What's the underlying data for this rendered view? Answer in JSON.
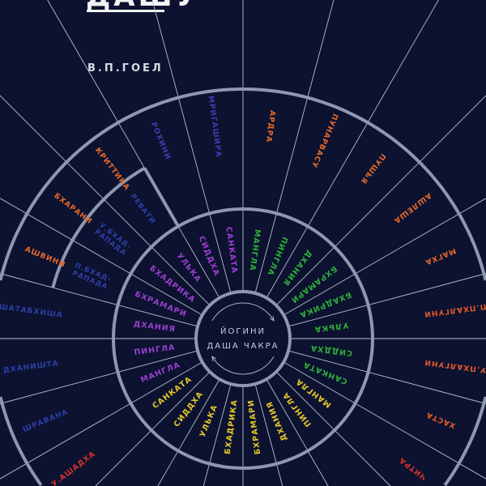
{
  "cover": {
    "title": "ДАШУ",
    "author": "В.П.ГОЕЛ",
    "center_line1": "ЙОГИНИ",
    "center_line2": "ДАША ЧАКРА",
    "background_color": "#0c1230",
    "ring_color": "#8e98ae"
  },
  "nakshatras": [
    {
      "label": "АШВИНИ",
      "color": "#e8692a"
    },
    {
      "label": "БХАРАНИ",
      "color": "#e8692a"
    },
    {
      "label": "КРИТТИКА",
      "color": "#e8692a"
    },
    {
      "label": "РОХИНИ",
      "color": "#3c3fb0"
    },
    {
      "label": "МРИГАШИРА",
      "color": "#3c3fb0"
    },
    {
      "label": "АРДРА",
      "color": "#e8692a"
    },
    {
      "label": "ПУНАРВАСУ",
      "color": "#e8692a"
    },
    {
      "label": "ПУШЬЯ",
      "color": "#e8692a"
    },
    {
      "label": "АШЛЕША",
      "color": "#e8692a"
    },
    {
      "label": "МАГХА",
      "color": "#e8692a"
    },
    {
      "label": "П.ПХАЛГУНИ",
      "color": "#e8592a"
    },
    {
      "label": "У.ПХАЛГУНИ",
      "color": "#e8592a"
    },
    {
      "label": "ХАСТА",
      "color": "#e8592a"
    },
    {
      "label": "ЧИТРА",
      "color": "#d8322a"
    },
    {
      "label": "",
      "color": "#d8322a"
    },
    {
      "label": "",
      "color": "#d8322a"
    },
    {
      "label": "",
      "color": "#d8322a"
    },
    {
      "label": "",
      "color": "#d8322a"
    },
    {
      "label": "",
      "color": "#d8322a"
    },
    {
      "label": "",
      "color": "#d8322a"
    },
    {
      "label": "У.АШАДХА",
      "color": "#d8322a"
    },
    {
      "label": "ШРАВАНА",
      "color": "#2e3fa8"
    },
    {
      "label": "ДХАНИШТА",
      "color": "#2e3fa8"
    },
    {
      "label": "ШАТАБХИША",
      "color": "#2e3fa8"
    },
    {
      "label": "П.БХАД-РАПАДА",
      "color": "#2e3fa8"
    },
    {
      "label": "У.БХАД-РАПАДА",
      "color": "#2e3fa8"
    },
    {
      "label": "РЕВАТИ",
      "color": "#2e3fa8"
    }
  ],
  "yoginis": [
    "МАНГЛА",
    "ПИНГЛА",
    "ДХАНИЯ",
    "БХРАМАРИ",
    "БХАДРИКА",
    "УЛЬКА",
    "СИДДХА",
    "САНКАТА"
  ],
  "yogini_group_colors": [
    "#2fae3a",
    "#e4c72a",
    "#9a3fd0"
  ]
}
